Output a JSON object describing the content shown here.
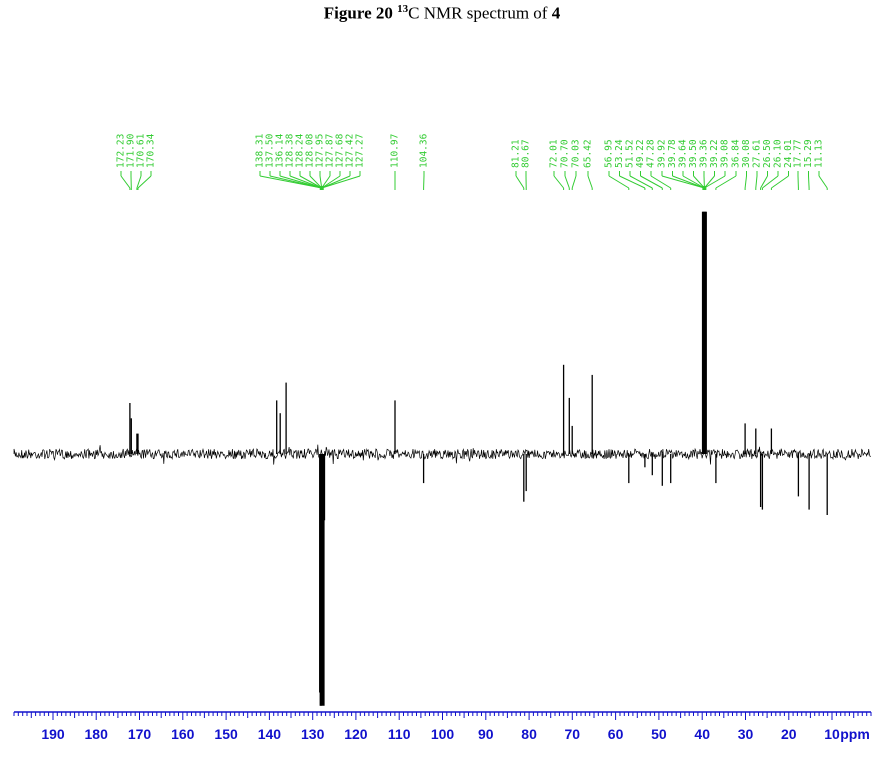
{
  "title": {
    "prefix": "Figure 20",
    "isotope_mass": "13",
    "main": "C NMR spectrum of",
    "compound": "4"
  },
  "chart_data": {
    "type": "line",
    "title": "Figure 20 13C NMR spectrum of 4",
    "xlabel": "ppm",
    "ylabel": "",
    "xlim": [
      199,
      1
    ],
    "x_reversed": true,
    "x_ticks": [
      190,
      180,
      170,
      160,
      150,
      140,
      130,
      120,
      110,
      100,
      90,
      80,
      70,
      60,
      50,
      40,
      30,
      20,
      10
    ],
    "x_unit_label": "ppm",
    "peak_labels": [
      "172.23",
      "171.90",
      "170.61",
      "170.34",
      "138.31",
      "137.50",
      "136.14",
      "128.38",
      "128.24",
      "128.08",
      "127.95",
      "127.87",
      "127.68",
      "127.42",
      "127.27",
      "110.97",
      "104.36",
      "81.21",
      "80.67",
      "72.01",
      "70.70",
      "70.03",
      "65.42",
      "56.95",
      "53.24",
      "51.52",
      "49.22",
      "47.28",
      "39.92",
      "39.78",
      "39.64",
      "39.50",
      "39.36",
      "39.22",
      "39.08",
      "36.84",
      "30.08",
      "27.61",
      "26.50",
      "26.10",
      "24.01",
      "17.77",
      "15.29",
      "11.13"
    ],
    "peaks": [
      {
        "ppm": 172.23,
        "intensity": 0.2
      },
      {
        "ppm": 171.9,
        "intensity": 0.14
      },
      {
        "ppm": 170.61,
        "intensity": 0.08
      },
      {
        "ppm": 170.34,
        "intensity": 0.08
      },
      {
        "ppm": 138.31,
        "intensity": 0.21
      },
      {
        "ppm": 137.5,
        "intensity": 0.16
      },
      {
        "ppm": 136.14,
        "intensity": 0.28
      },
      {
        "ppm": 128.38,
        "intensity": -0.9
      },
      {
        "ppm": 128.24,
        "intensity": -0.8
      },
      {
        "ppm": 128.08,
        "intensity": -0.95
      },
      {
        "ppm": 127.95,
        "intensity": -0.7
      },
      {
        "ppm": 127.87,
        "intensity": -0.6
      },
      {
        "ppm": 127.68,
        "intensity": -0.85
      },
      {
        "ppm": 127.42,
        "intensity": -0.3
      },
      {
        "ppm": 127.27,
        "intensity": -0.25
      },
      {
        "ppm": 110.97,
        "intensity": 0.21
      },
      {
        "ppm": 104.36,
        "intensity": -0.11
      },
      {
        "ppm": 81.21,
        "intensity": -0.18
      },
      {
        "ppm": 80.67,
        "intensity": -0.14
      },
      {
        "ppm": 72.01,
        "intensity": 0.35
      },
      {
        "ppm": 70.7,
        "intensity": 0.22
      },
      {
        "ppm": 70.03,
        "intensity": 0.11
      },
      {
        "ppm": 65.42,
        "intensity": 0.31
      },
      {
        "ppm": 56.95,
        "intensity": -0.11
      },
      {
        "ppm": 53.24,
        "intensity": -0.05
      },
      {
        "ppm": 51.52,
        "intensity": -0.08
      },
      {
        "ppm": 49.22,
        "intensity": -0.12
      },
      {
        "ppm": 47.28,
        "intensity": -0.11
      },
      {
        "ppm": 39.5,
        "intensity": 0.95
      },
      {
        "ppm": 36.84,
        "intensity": -0.11
      },
      {
        "ppm": 30.08,
        "intensity": 0.12
      },
      {
        "ppm": 27.61,
        "intensity": 0.1
      },
      {
        "ppm": 26.5,
        "intensity": -0.2
      },
      {
        "ppm": 26.1,
        "intensity": -0.21
      },
      {
        "ppm": 24.01,
        "intensity": 0.1
      },
      {
        "ppm": 17.77,
        "intensity": -0.16
      },
      {
        "ppm": 15.29,
        "intensity": -0.21
      },
      {
        "ppm": 11.13,
        "intensity": -0.23
      }
    ],
    "grid": false,
    "legend": "none"
  },
  "colors": {
    "label_green": "#33cc33",
    "axis_blue": "#1111cc",
    "spectrum": "#000000"
  }
}
